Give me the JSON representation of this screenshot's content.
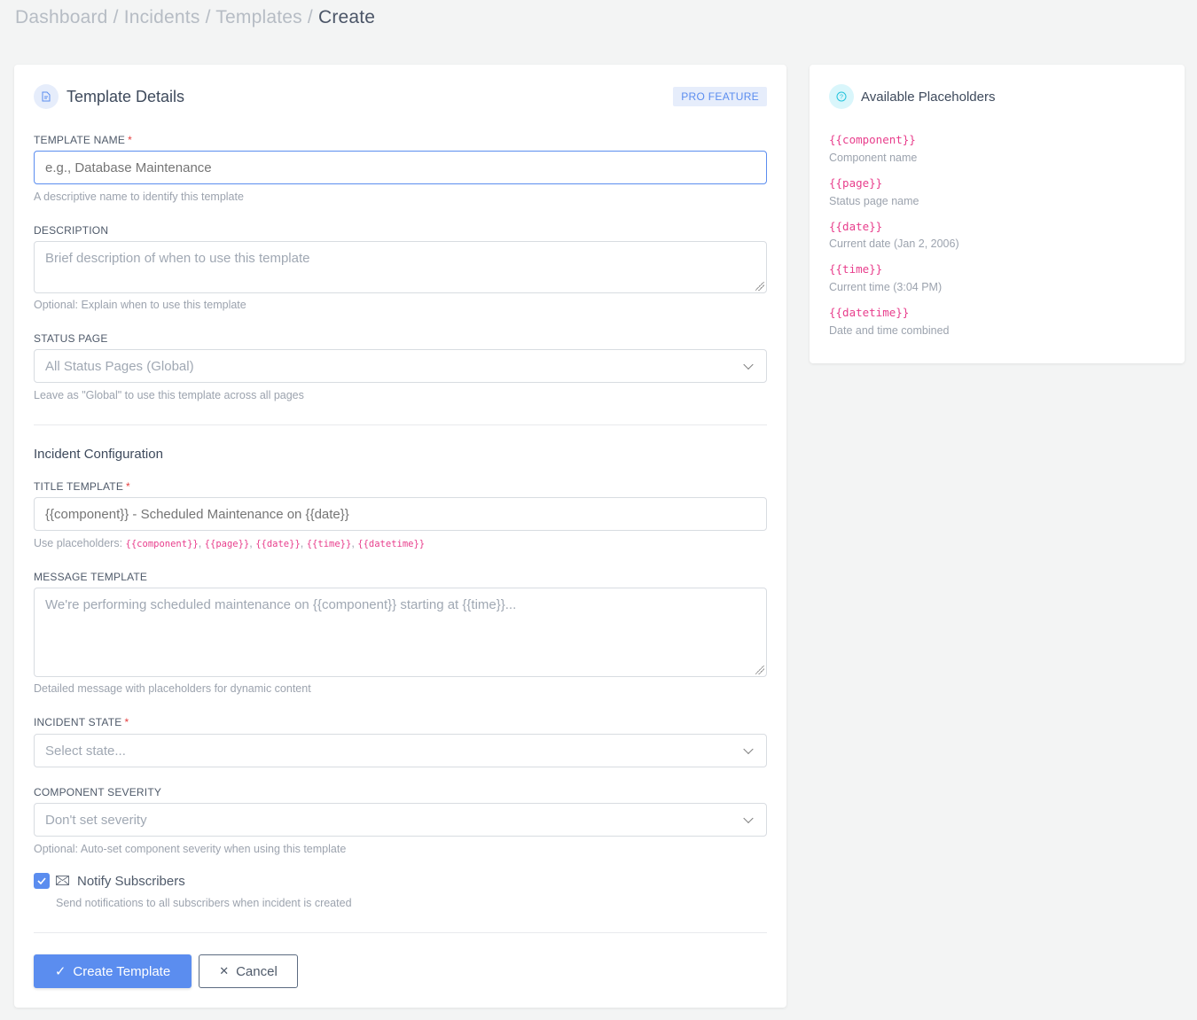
{
  "breadcrumb": {
    "items": [
      "Dashboard",
      "Incidents",
      "Templates"
    ],
    "current": "Create",
    "separator": "/"
  },
  "details": {
    "title": "Template Details",
    "badge": "PRO FEATURE",
    "icon": "document-icon",
    "name": {
      "label": "TEMPLATE NAME",
      "required": "*",
      "placeholder": "e.g., Database Maintenance",
      "value": "",
      "hint": "A descriptive name to identify this template"
    },
    "description": {
      "label": "DESCRIPTION",
      "placeholder": "Brief description of when to use this template",
      "value": "",
      "hint": "Optional: Explain when to use this template"
    },
    "status_page": {
      "label": "STATUS PAGE",
      "selected": "All Status Pages (Global)",
      "hint": "Leave as \"Global\" to use this template across all pages"
    },
    "incident_config": {
      "title": "Incident Configuration"
    },
    "title_template": {
      "label": "TITLE TEMPLATE",
      "required": "*",
      "placeholder": "{{component}} - Scheduled Maintenance on {{date}}",
      "value": "",
      "hint_prefix": "Use placeholders: ",
      "hint_codes": [
        "{{component}}",
        "{{page}}",
        "{{date}}",
        "{{time}}",
        "{{datetime}}"
      ]
    },
    "message_template": {
      "label": "MESSAGE TEMPLATE",
      "placeholder": "We're performing scheduled maintenance on {{component}} starting at {{time}}...",
      "value": "",
      "hint": "Detailed message with placeholders for dynamic content"
    },
    "incident_state": {
      "label": "INCIDENT STATE",
      "required": "*",
      "selected": "Select state..."
    },
    "severity": {
      "label": "COMPONENT SEVERITY",
      "selected": "Don't set severity",
      "hint": "Optional: Auto-set component severity when using this template"
    },
    "notify": {
      "label": "Notify Subscribers",
      "checked": true,
      "hint": "Send notifications to all subscribers when incident is created"
    },
    "create_label": "Create Template",
    "cancel_label": "Cancel"
  },
  "placeholders": {
    "title": "Available Placeholders",
    "icon": "question-circle-icon",
    "items": [
      {
        "code": "{{component}}",
        "desc": "Component name"
      },
      {
        "code": "{{page}}",
        "desc": "Status page name"
      },
      {
        "code": "{{date}}",
        "desc": "Current date (Jan 2, 2006)"
      },
      {
        "code": "{{time}}",
        "desc": "Current time (3:04 PM)"
      },
      {
        "code": "{{datetime}}",
        "desc": "Date and time combined"
      }
    ]
  },
  "colors": {
    "accent": "#5b8def",
    "code": "#e83e8c",
    "required": "#e53e3e"
  }
}
